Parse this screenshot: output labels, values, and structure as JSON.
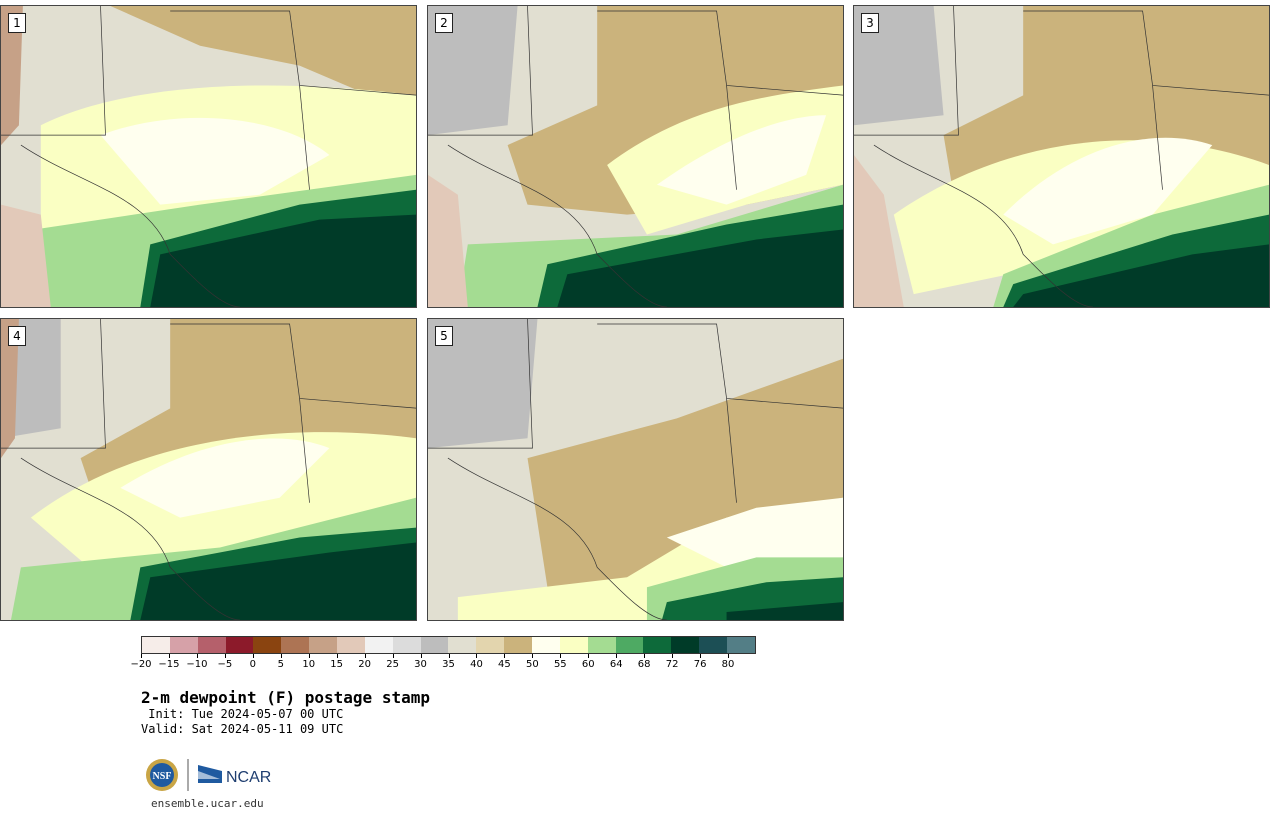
{
  "stamps": [
    {
      "label": "1"
    },
    {
      "label": "2"
    },
    {
      "label": "3"
    },
    {
      "label": "4"
    },
    {
      "label": "5"
    }
  ],
  "colorbar": {
    "ticks": [
      "−20",
      "−15",
      "−10",
      "−5",
      "0",
      "5",
      "10",
      "15",
      "20",
      "25",
      "30",
      "35",
      "40",
      "45",
      "50",
      "55",
      "60",
      "64",
      "68",
      "72",
      "76",
      "80"
    ],
    "colors": [
      "#f6ede9",
      "#d6a1a8",
      "#b5606b",
      "#8c1a2a",
      "#8a4410",
      "#ad7454",
      "#c6a187",
      "#e2c9b9",
      "#f2f2f2",
      "#dcdcdc",
      "#bdbdbd",
      "#e1dfd1",
      "#e3d5ae",
      "#cbb37c",
      "#ffffef",
      "#faffc3",
      "#a4dc92",
      "#4eaa63",
      "#0d6a3a",
      "#003b28",
      "#1c4f55",
      "#537e86"
    ]
  },
  "title": "2-m dewpoint (F) postage stamp",
  "init": " Init: Tue 2024-05-07 00 UTC",
  "valid": "Valid: Sat 2024-05-11 09 UTC",
  "logo": {
    "nsf": "NSF",
    "ncar": "NCAR"
  },
  "footer_url": "ensemble.ucar.edu"
}
